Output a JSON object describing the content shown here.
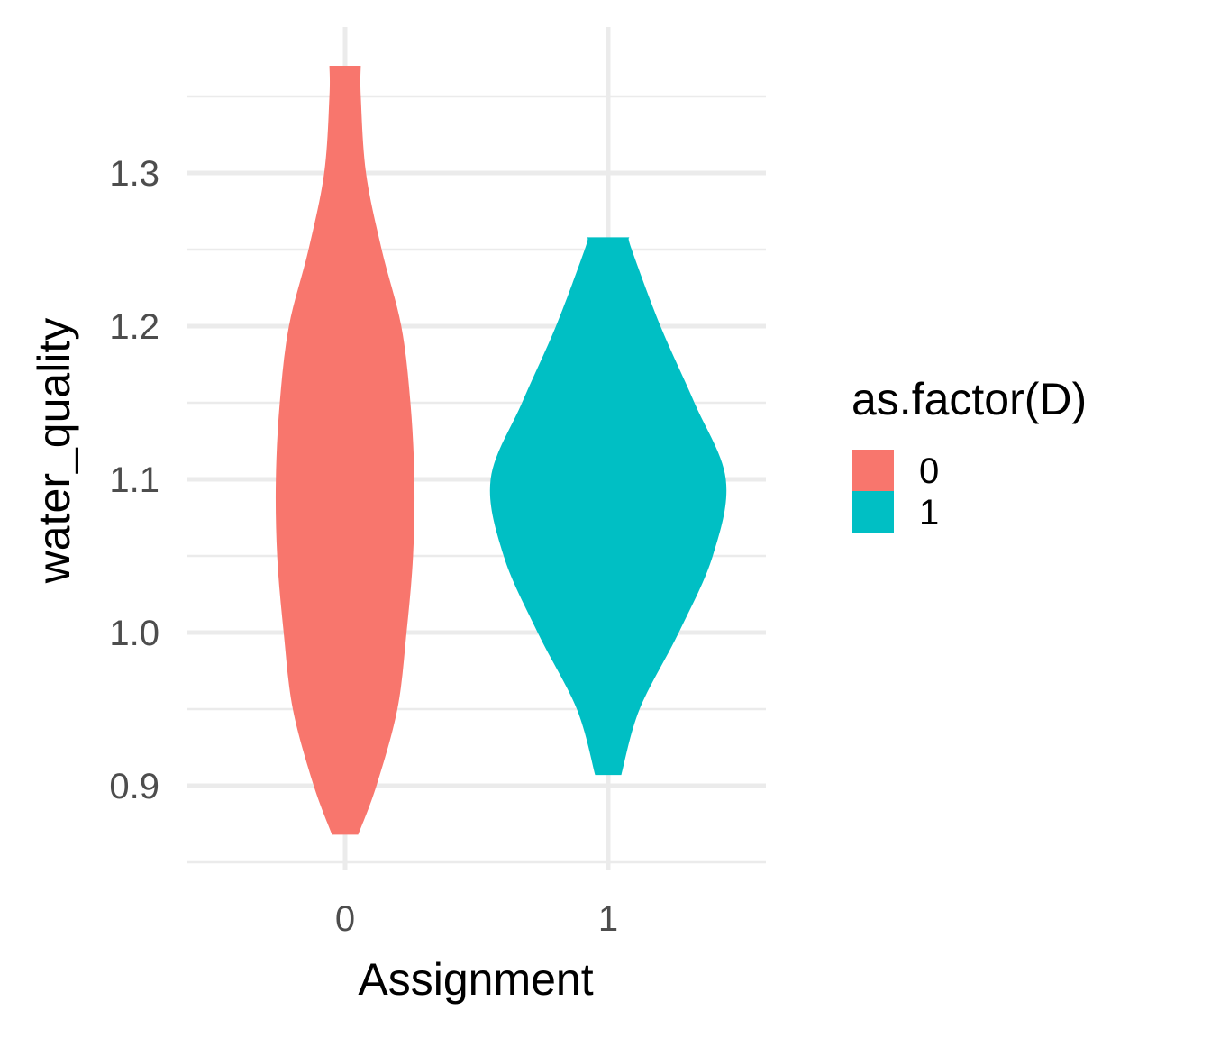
{
  "chart_data": {
    "type": "violin",
    "xlabel": "Assignment",
    "ylabel": "water_quality",
    "categories": [
      "0",
      "1"
    ],
    "ylim": [
      0.85,
      1.38
    ],
    "y_ticks": [
      {
        "value": 0.9,
        "label": "0.9"
      },
      {
        "value": 1.0,
        "label": "1.0"
      },
      {
        "value": 1.1,
        "label": "1.1"
      },
      {
        "value": 1.2,
        "label": "1.2"
      },
      {
        "value": 1.3,
        "label": "1.3"
      }
    ],
    "grid": true,
    "legend": {
      "title": "as.factor(D)",
      "position": "right",
      "items": [
        {
          "label": "0",
          "color": "#F8766D"
        },
        {
          "label": "1",
          "color": "#00BFC4"
        }
      ]
    },
    "series": [
      {
        "category": "0",
        "color": "#F8766D",
        "profile": [
          [
            0.868,
            0.05
          ],
          [
            0.9,
            0.12
          ],
          [
            0.95,
            0.2
          ],
          [
            1.0,
            0.235
          ],
          [
            1.05,
            0.26
          ],
          [
            1.1,
            0.265
          ],
          [
            1.15,
            0.25
          ],
          [
            1.2,
            0.215
          ],
          [
            1.25,
            0.14
          ],
          [
            1.3,
            0.08
          ],
          [
            1.35,
            0.06
          ],
          [
            1.37,
            0.06
          ]
        ]
      },
      {
        "category": "1",
        "color": "#00BFC4",
        "profile": [
          [
            0.907,
            0.05
          ],
          [
            0.95,
            0.12
          ],
          [
            1.0,
            0.27
          ],
          [
            1.05,
            0.4
          ],
          [
            1.1,
            0.45
          ],
          [
            1.15,
            0.33
          ],
          [
            1.2,
            0.2
          ],
          [
            1.25,
            0.09
          ],
          [
            1.258,
            0.08
          ]
        ]
      }
    ]
  }
}
